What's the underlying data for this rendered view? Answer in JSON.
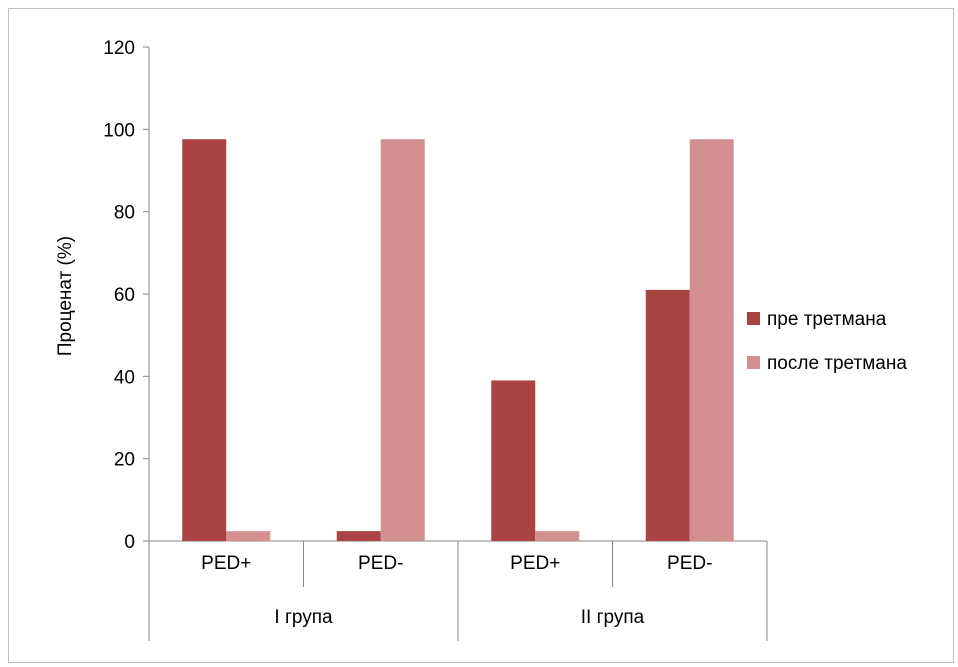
{
  "chart_data": {
    "type": "bar",
    "title": "",
    "xlabel": "",
    "ylabel": "Проценат (%)",
    "ylim": [
      0,
      120
    ],
    "yticks": [
      0,
      20,
      40,
      60,
      80,
      100,
      120
    ],
    "grid": false,
    "legend_position": "right",
    "groups": [
      {
        "label": "I група",
        "categories": [
          "PED+",
          "PED-"
        ]
      },
      {
        "label": "II група",
        "categories": [
          "PED+",
          "PED-"
        ]
      }
    ],
    "categories": [
      "PED+",
      "PED-",
      "PED+",
      "PED-"
    ],
    "series": [
      {
        "name": "пре третмана",
        "color": "#a94442",
        "values": [
          97.6,
          2.4,
          39,
          61
        ]
      },
      {
        "name": "после третмана",
        "color": "#d49090",
        "values": [
          2.4,
          97.6,
          2.4,
          97.6
        ]
      }
    ]
  }
}
